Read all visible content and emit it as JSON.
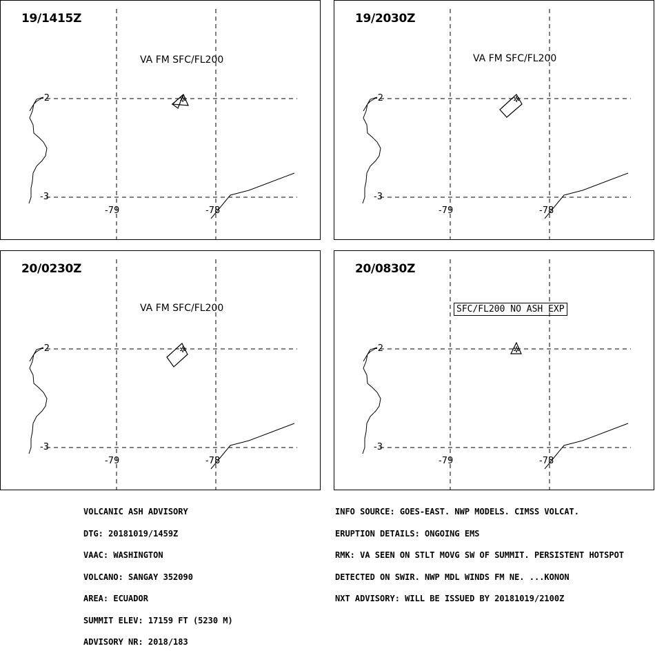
{
  "panels": [
    {
      "dtg": "19/1415Z",
      "label": "VA FM SFC/FL200",
      "boxed": false,
      "plume": "p1"
    },
    {
      "dtg": "19/2030Z",
      "label": "VA FM SFC/FL200",
      "boxed": false,
      "plume": "p2"
    },
    {
      "dtg": "20/0230Z",
      "label": "VA FM SFC/FL200",
      "boxed": false,
      "plume": "p3"
    },
    {
      "dtg": "20/0830Z",
      "label": "SFC/FL200 NO ASH EXP",
      "boxed": true,
      "plume": "p4"
    }
  ],
  "axes": {
    "lat_top": "-2",
    "lat_bottom": "-3",
    "lon_left": "-79",
    "lon_right": "-78"
  },
  "advisory_left": [
    "VOLCANIC ASH ADVISORY",
    "DTG: 20181019/1459Z",
    "VAAC: WASHINGTON",
    "VOLCANO: SANGAY 352090",
    "AREA: ECUADOR",
    "SUMMIT ELEV: 17159 FT (5230 M)",
    "ADVISORY NR: 2018/183"
  ],
  "advisory_right": [
    "INFO SOURCE: GOES-EAST. NWP MODELS. CIMSS VOLCAT.",
    "ERUPTION DETAILS: ONGOING EMS",
    "RMK: VA SEEN ON STLT MOVG SW OF SUMMIT. PERSISTENT HOTSPOT",
    "DETECTED ON SWIR. NWP MDL WINDS FM NE. ...KONON",
    "NXT ADVISORY: WILL BE ISSUED BY 20181019/2100Z"
  ]
}
